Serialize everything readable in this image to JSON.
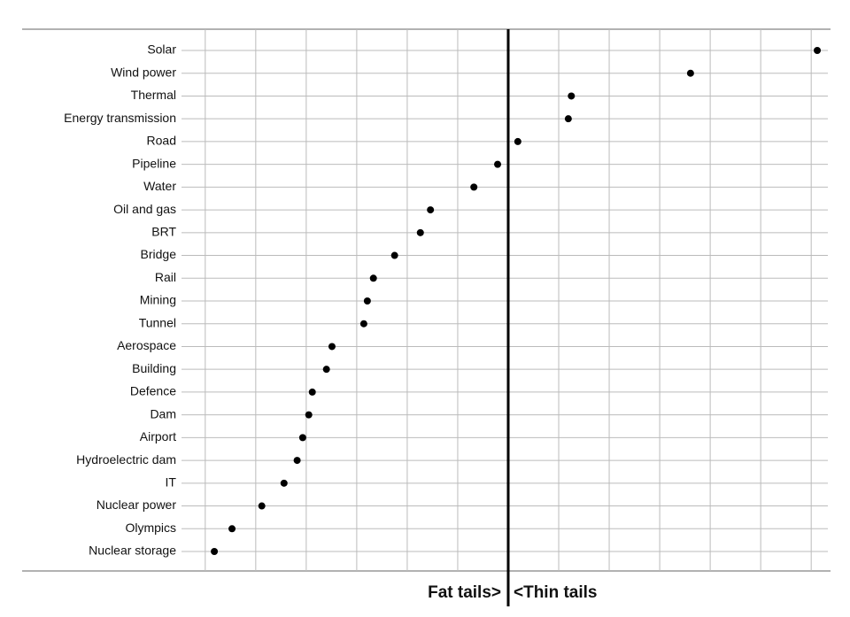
{
  "chart_data": {
    "type": "dot",
    "categories": [
      "Solar",
      "Wind power",
      "Thermal",
      "Energy transmission",
      "Road",
      "Pipeline",
      "Water",
      "Oil and gas",
      "BRT",
      "Bridge",
      "Rail",
      "Mining",
      "Tunnel",
      "Aerospace",
      "Building",
      "Defence",
      "Dam",
      "Airport",
      "Hydroelectric dam",
      "IT",
      "Nuclear power",
      "Olympics",
      "Nuclear storage"
    ],
    "values": [
      6.12,
      3.61,
      1.25,
      1.19,
      0.19,
      -0.21,
      -0.68,
      -1.54,
      -1.74,
      -2.25,
      -2.67,
      -2.79,
      -2.86,
      -3.49,
      -3.6,
      -3.88,
      -3.95,
      -4.07,
      -4.18,
      -4.44,
      -4.88,
      -5.47,
      -5.82
    ],
    "color": "#000000",
    "xlim": [
      -6.47,
      6.33
    ],
    "xticks": [
      -6,
      -5,
      -4,
      -3,
      -2,
      -1,
      1,
      2,
      3,
      4,
      5,
      6
    ],
    "grid": true,
    "reference_line": 0,
    "left_annotation": "Fat tails>",
    "right_annotation": "<Thin tails"
  }
}
